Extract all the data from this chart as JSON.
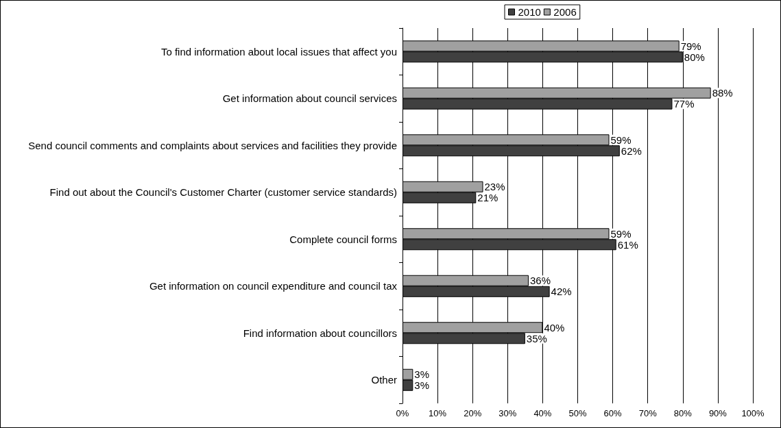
{
  "chart_data": {
    "type": "bar",
    "orientation": "horizontal",
    "categories": [
      "To find information about local issues that affect you",
      "Get information about council services",
      "Send council comments and complaints about services and facilities they provide",
      "Find out about the Council's Customer Charter (customer service standards)",
      "Complete council forms",
      "Get information on council expenditure and council tax",
      "Find information about councillors",
      "Other"
    ],
    "series": [
      {
        "name": "2010",
        "color": "#404040",
        "values": [
          80,
          77,
          62,
          21,
          61,
          42,
          35,
          3
        ],
        "value_labels": [
          "80%",
          "77%",
          "62%",
          "21%",
          "61%",
          "42%",
          "35%",
          "3%"
        ]
      },
      {
        "name": "2006",
        "color": "#a0a0a0",
        "values": [
          79,
          88,
          59,
          23,
          59,
          36,
          40,
          3
        ],
        "value_labels": [
          "79%",
          "88%",
          "59%",
          "23%",
          "59%",
          "36%",
          "40%",
          "3%"
        ]
      }
    ],
    "xlim": [
      0,
      100
    ],
    "xticks": [
      {
        "value": 0,
        "label": "0%"
      },
      {
        "value": 10,
        "label": "10%"
      },
      {
        "value": 20,
        "label": "20%"
      },
      {
        "value": 30,
        "label": "30%"
      },
      {
        "value": 40,
        "label": "40%"
      },
      {
        "value": 50,
        "label": "50%"
      },
      {
        "value": 60,
        "label": "60%"
      },
      {
        "value": 70,
        "label": "70%"
      },
      {
        "value": 80,
        "label": "80%"
      },
      {
        "value": 90,
        "label": "90%"
      },
      {
        "value": 100,
        "label": "100%"
      }
    ],
    "grid": "x",
    "legend": "top"
  }
}
